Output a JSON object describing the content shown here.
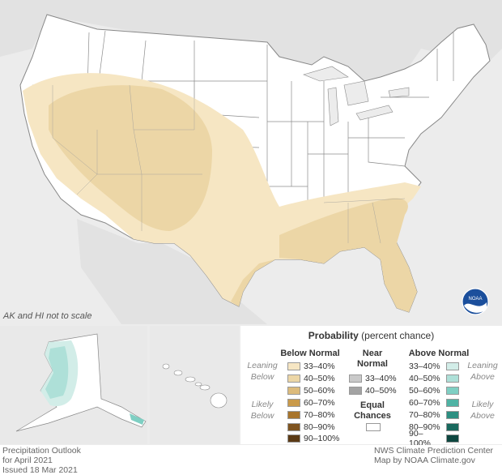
{
  "map": {
    "note": "AK and HI not to scale"
  },
  "legend": {
    "title_bold": "Probability",
    "title_rest": " (percent chance)",
    "below_header": "Below Normal",
    "near_header_line1": "Near",
    "near_header_line2": "Normal",
    "above_header": "Above Normal",
    "leaning_below": [
      "Leaning",
      "Below"
    ],
    "likely_below": [
      "Likely",
      "Below"
    ],
    "leaning_above": [
      "Leaning",
      "Above"
    ],
    "likely_above": [
      "Likely",
      "Above"
    ],
    "below_items": [
      {
        "label": "33–40%",
        "color": "#f6e6c3"
      },
      {
        "label": "40–50%",
        "color": "#ecd6a6"
      },
      {
        "label": "50–60%",
        "color": "#dcbb7c"
      },
      {
        "label": "60–70%",
        "color": "#c99a4a"
      },
      {
        "label": "70–80%",
        "color": "#a8752c"
      },
      {
        "label": "80–90%",
        "color": "#7f5420"
      },
      {
        "label": "90–100%",
        "color": "#5b3a15"
      }
    ],
    "near_items": [
      {
        "label": "33–40%",
        "color": "#c9c9c9"
      },
      {
        "label": "40–50%",
        "color": "#a3a3a3"
      }
    ],
    "equal_line1": "Equal",
    "equal_line2": "Chances",
    "equal_color": "#ffffff",
    "above_items": [
      {
        "label": "33–40%",
        "color": "#d2ede8"
      },
      {
        "label": "40–50%",
        "color": "#aee0d8"
      },
      {
        "label": "50–60%",
        "color": "#7fcfc3"
      },
      {
        "label": "60–70%",
        "color": "#4fb3a4"
      },
      {
        "label": "70–80%",
        "color": "#2c8f81"
      },
      {
        "label": "80–90%",
        "color": "#19695e"
      },
      {
        "label": "90–100%",
        "color": "#0d463f"
      }
    ]
  },
  "footer": {
    "left_line1": "Precipitation Outlook",
    "left_line2": "for April 2021",
    "left_line3": "Issued 18 Mar 2021",
    "right_line1": "NWS Climate Prediction Center",
    "right_line2": "Map by NOAA Climate.gov"
  },
  "logo": {
    "text": "NOAA"
  }
}
